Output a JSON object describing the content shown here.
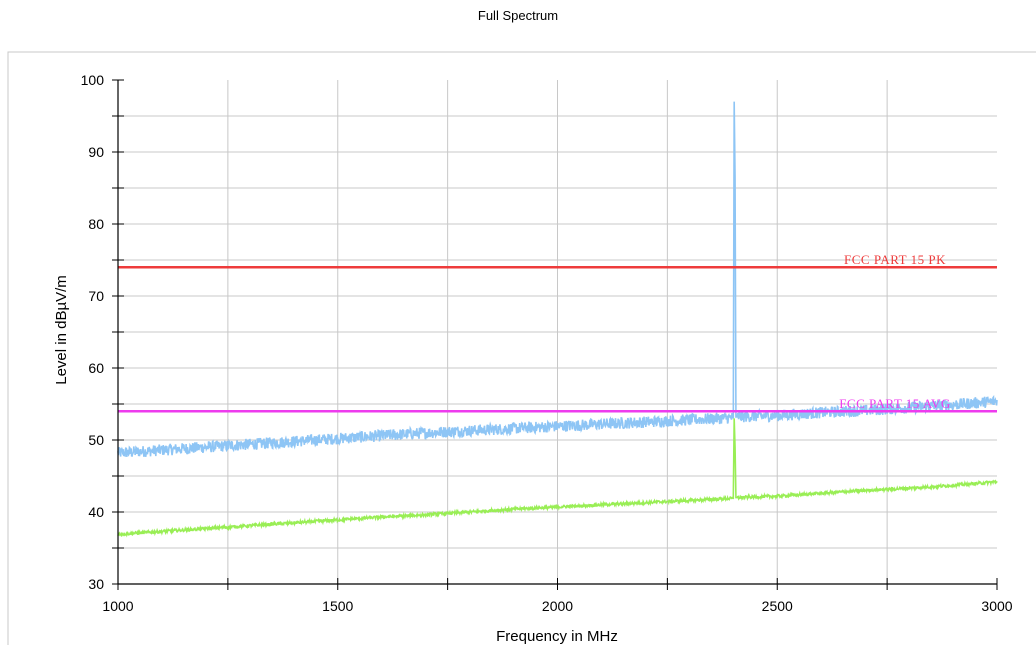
{
  "chart_data": {
    "type": "line",
    "title": "Full Spectrum",
    "xlabel": "Frequency in MHz",
    "ylabel": "Level in dBµV/m",
    "xlim": [
      1000,
      3000
    ],
    "ylim": [
      30,
      100
    ],
    "x_ticks": [
      1000,
      1500,
      2000,
      2500,
      3000
    ],
    "y_ticks": [
      30,
      40,
      50,
      60,
      70,
      80,
      90,
      100
    ],
    "grid": true,
    "limit_lines": [
      {
        "name": "FCC PART 15  PK",
        "value": 74,
        "color": "#ee3b3b"
      },
      {
        "name": "FCC PART 15 AVG",
        "value": 54,
        "color": "#ee3bee"
      }
    ],
    "series": [
      {
        "color": "#8ec5f5",
        "x": [
          1000,
          1100,
          1200,
          1300,
          1400,
          1500,
          1600,
          1700,
          1800,
          1900,
          2000,
          2100,
          2200,
          2300,
          2400,
          2402,
          2404,
          2406,
          2500,
          2600,
          2700,
          2800,
          2900,
          3000
        ],
        "values": [
          48.2,
          48.6,
          49.0,
          49.4,
          49.8,
          50.2,
          50.6,
          51.0,
          51.3,
          51.6,
          51.9,
          52.2,
          52.5,
          52.8,
          53.1,
          97.0,
          86.5,
          53.2,
          53.4,
          53.8,
          54.1,
          54.5,
          54.9,
          55.4
        ],
        "noise": 0.8
      },
      {
        "color": "#99ee55",
        "x": [
          1000,
          1100,
          1200,
          1300,
          1400,
          1500,
          1600,
          1700,
          1800,
          1900,
          2000,
          2100,
          2200,
          2300,
          2400,
          2402,
          2404,
          2406,
          2500,
          2600,
          2700,
          2800,
          2900,
          3000
        ],
        "values": [
          36.9,
          37.3,
          37.7,
          38.1,
          38.5,
          38.9,
          39.3,
          39.6,
          40.0,
          40.4,
          40.7,
          41.0,
          41.3,
          41.6,
          41.9,
          53.0,
          49.0,
          42.0,
          42.2,
          42.6,
          43.0,
          43.3,
          43.7,
          44.2
        ],
        "noise": 0.2
      }
    ]
  }
}
